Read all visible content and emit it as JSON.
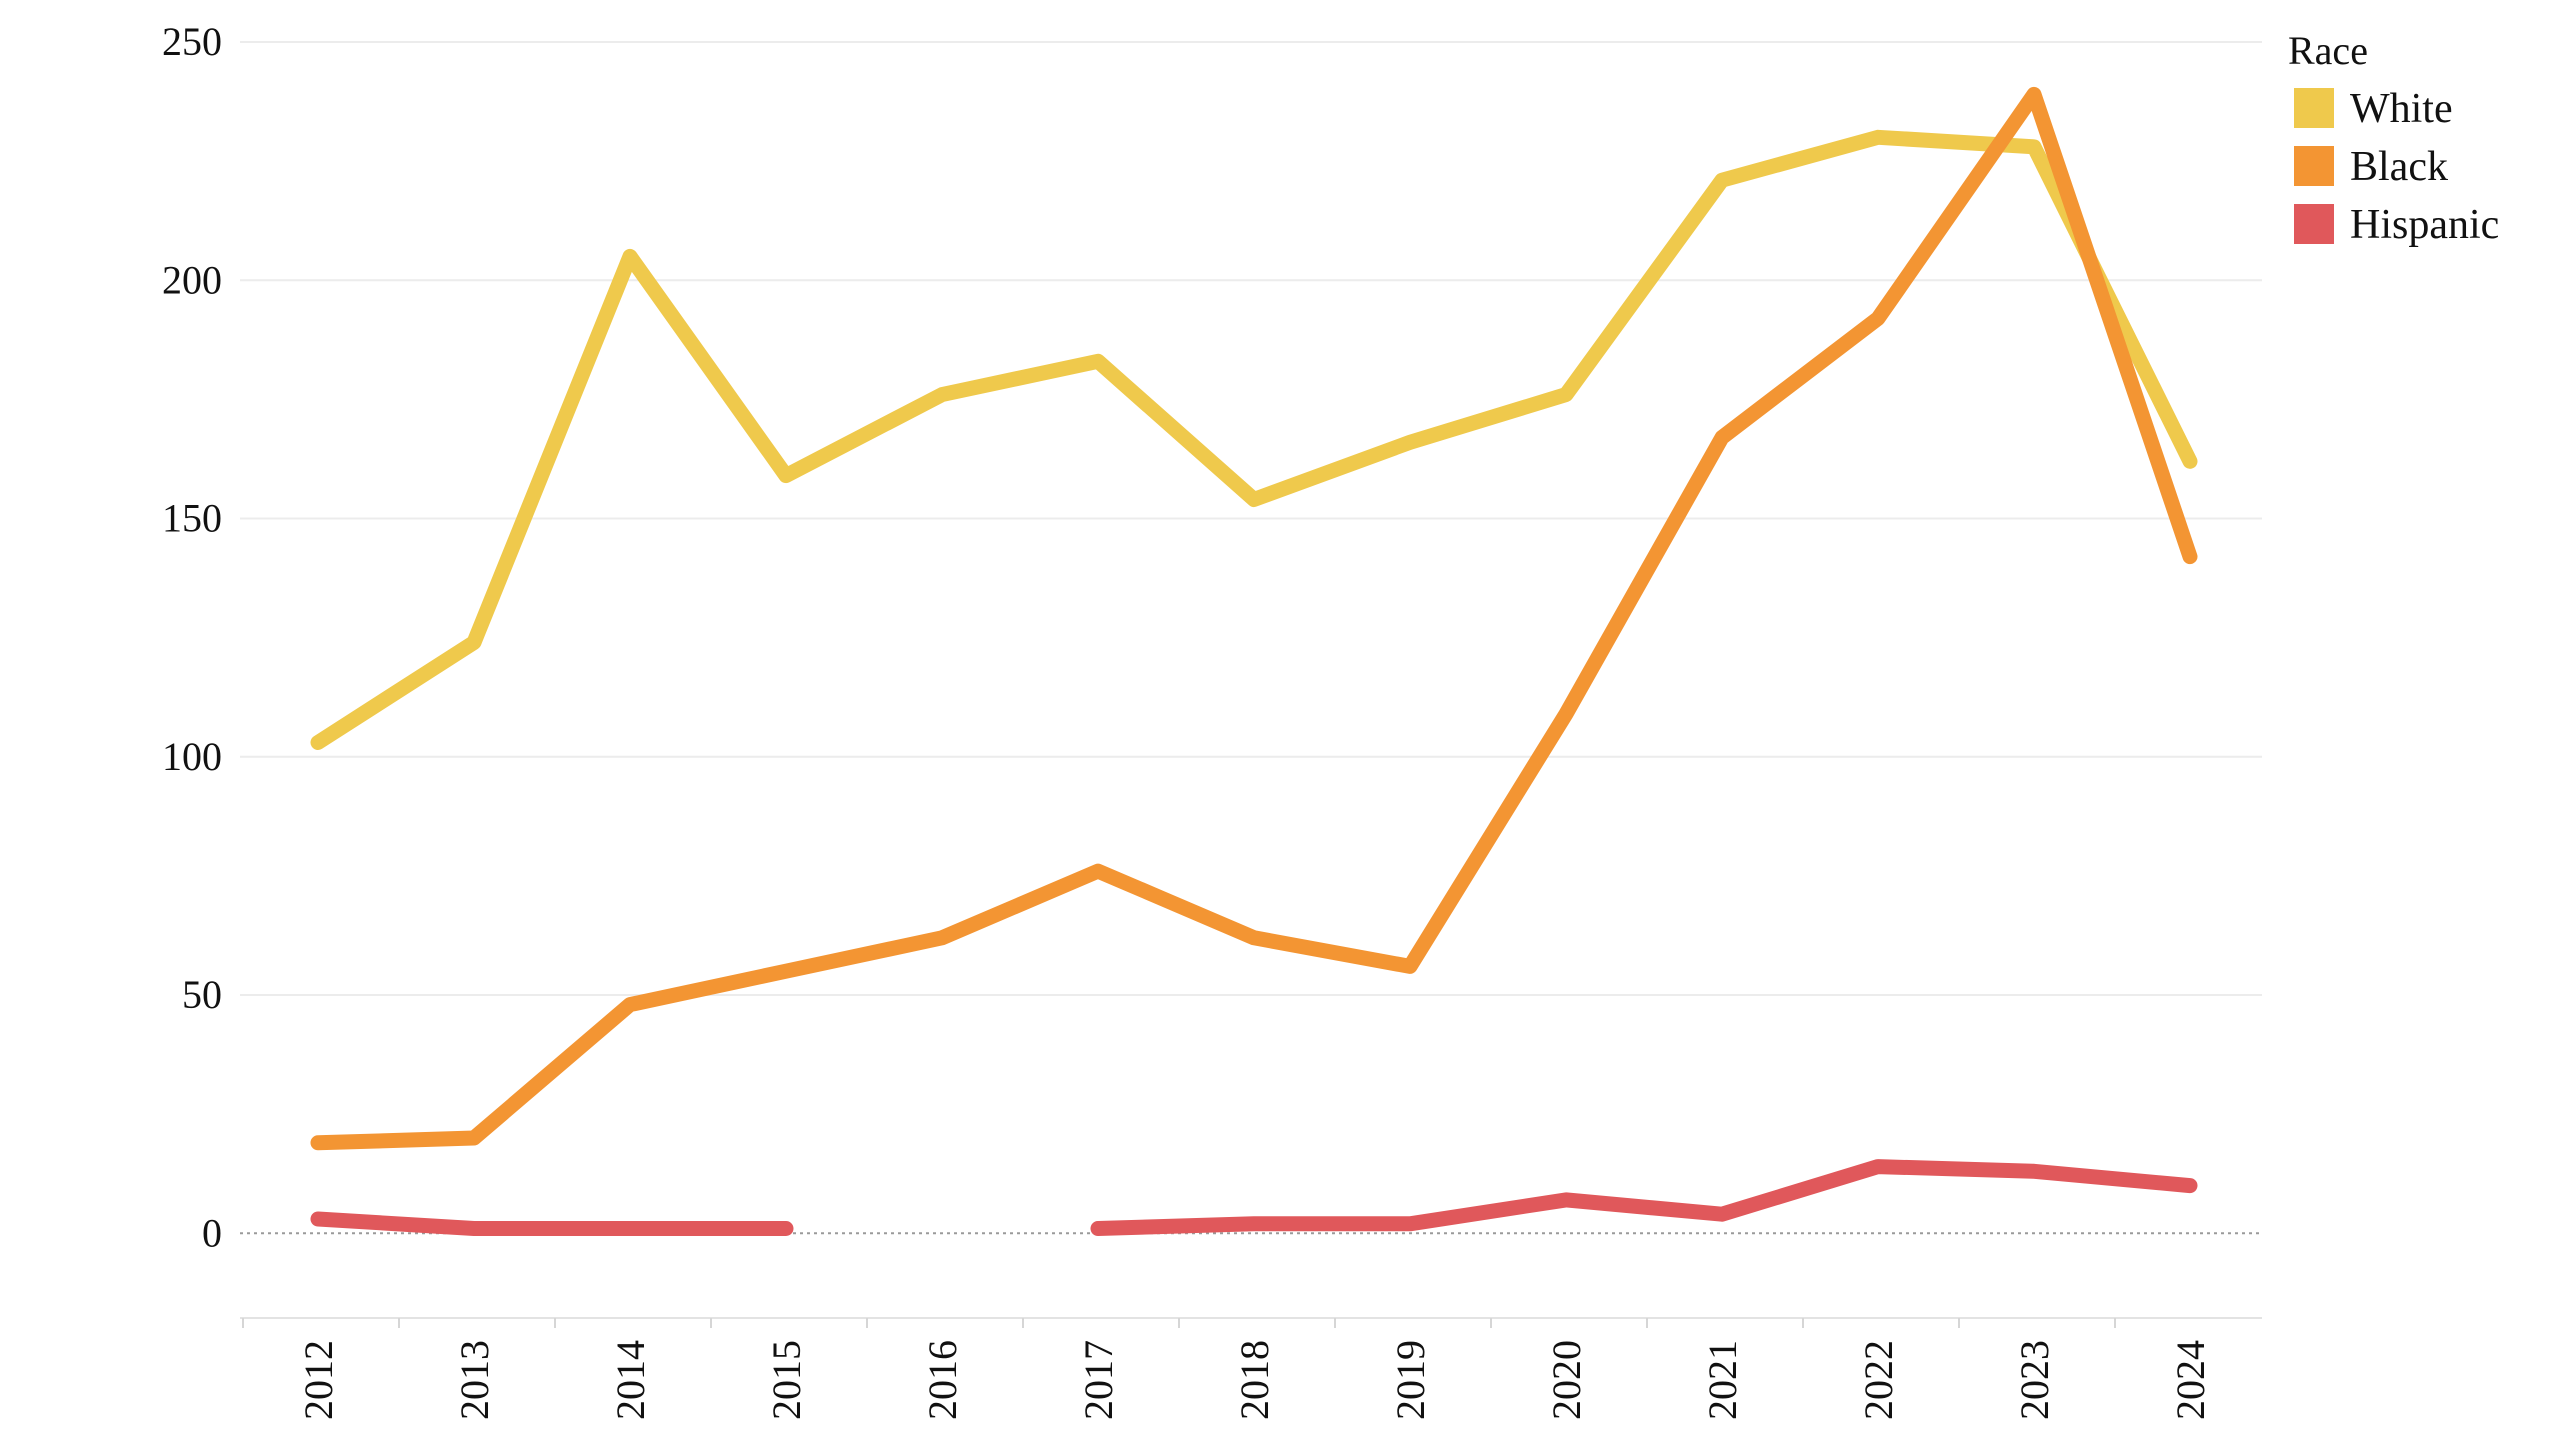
{
  "chart_data": {
    "type": "line",
    "x": [
      "2012",
      "2013",
      "2014",
      "2015",
      "2016",
      "2017",
      "2018",
      "2019",
      "2020",
      "2021",
      "2022",
      "2023",
      "2024"
    ],
    "series": [
      {
        "name": "White",
        "color": "#EFC94C",
        "values": [
          103,
          124,
          205,
          159,
          176,
          183,
          154,
          166,
          176,
          221,
          230,
          228,
          162
        ]
      },
      {
        "name": "Black",
        "color": "#F39533",
        "values": [
          19,
          20,
          48,
          55,
          62,
          76,
          62,
          56,
          109,
          167,
          192,
          239,
          142
        ]
      },
      {
        "name": "Hispanic",
        "color": "#E0585B",
        "values": [
          3,
          1,
          1,
          1,
          null,
          1,
          2,
          2,
          7,
          4,
          14,
          13,
          10
        ]
      }
    ],
    "yticks": [
      0,
      50,
      100,
      150,
      200,
      250
    ],
    "ylim": [
      -14,
      250
    ],
    "legend_title": "Race",
    "legend_position": "top-right",
    "grid": "horizontal",
    "zero_line": "dotted",
    "xlabel": "",
    "ylabel": "",
    "title": ""
  }
}
